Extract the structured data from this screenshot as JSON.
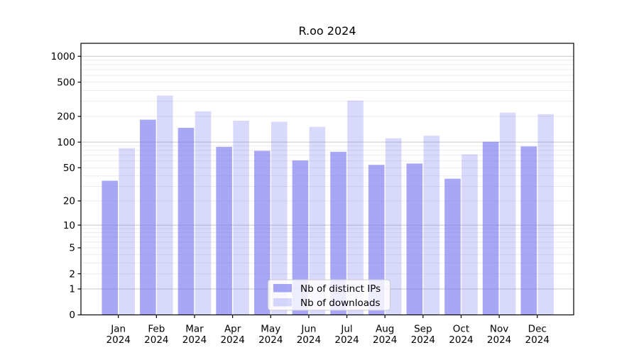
{
  "chart_data": {
    "type": "bar",
    "title": "R.oo 2024",
    "yscale": "log1p",
    "ylim": [
      0,
      1414
    ],
    "yticks": [
      0,
      1,
      2,
      5,
      10,
      20,
      50,
      100,
      200,
      500,
      1000
    ],
    "grid": true,
    "grid_major_values": [
      1,
      10,
      100,
      1000
    ],
    "grid_minor_values": [
      2,
      3,
      4,
      5,
      6,
      7,
      8,
      9,
      20,
      30,
      40,
      50,
      60,
      70,
      80,
      90,
      200,
      300,
      400,
      500,
      600,
      700,
      800,
      900
    ],
    "categories": [
      "Jan",
      "Feb",
      "Mar",
      "Apr",
      "May",
      "Jun",
      "Jul",
      "Aug",
      "Sep",
      "Oct",
      "Nov",
      "Dec"
    ],
    "category_year": "2024",
    "series": [
      {
        "name": "Nb of distinct IPs",
        "color": "rgba(120,120,240,0.65)",
        "values": [
          35,
          183,
          147,
          88,
          79,
          61,
          77,
          54,
          56,
          37,
          101,
          89
        ]
      },
      {
        "name": "Nb of downloads",
        "color": "rgba(120,120,240,0.28)",
        "values": [
          85,
          349,
          229,
          178,
          173,
          151,
          306,
          111,
          119,
          72,
          221,
          212
        ]
      }
    ],
    "legend_position": "lower-center"
  },
  "colors": {
    "background": "#ffffff",
    "axis": "#000000",
    "grid_major": "#c6c6c6",
    "grid_minor": "#ececec",
    "legend_bg": "rgba(255,255,255,0.8)",
    "legend_border": "#cccccc",
    "text": "#000000"
  }
}
